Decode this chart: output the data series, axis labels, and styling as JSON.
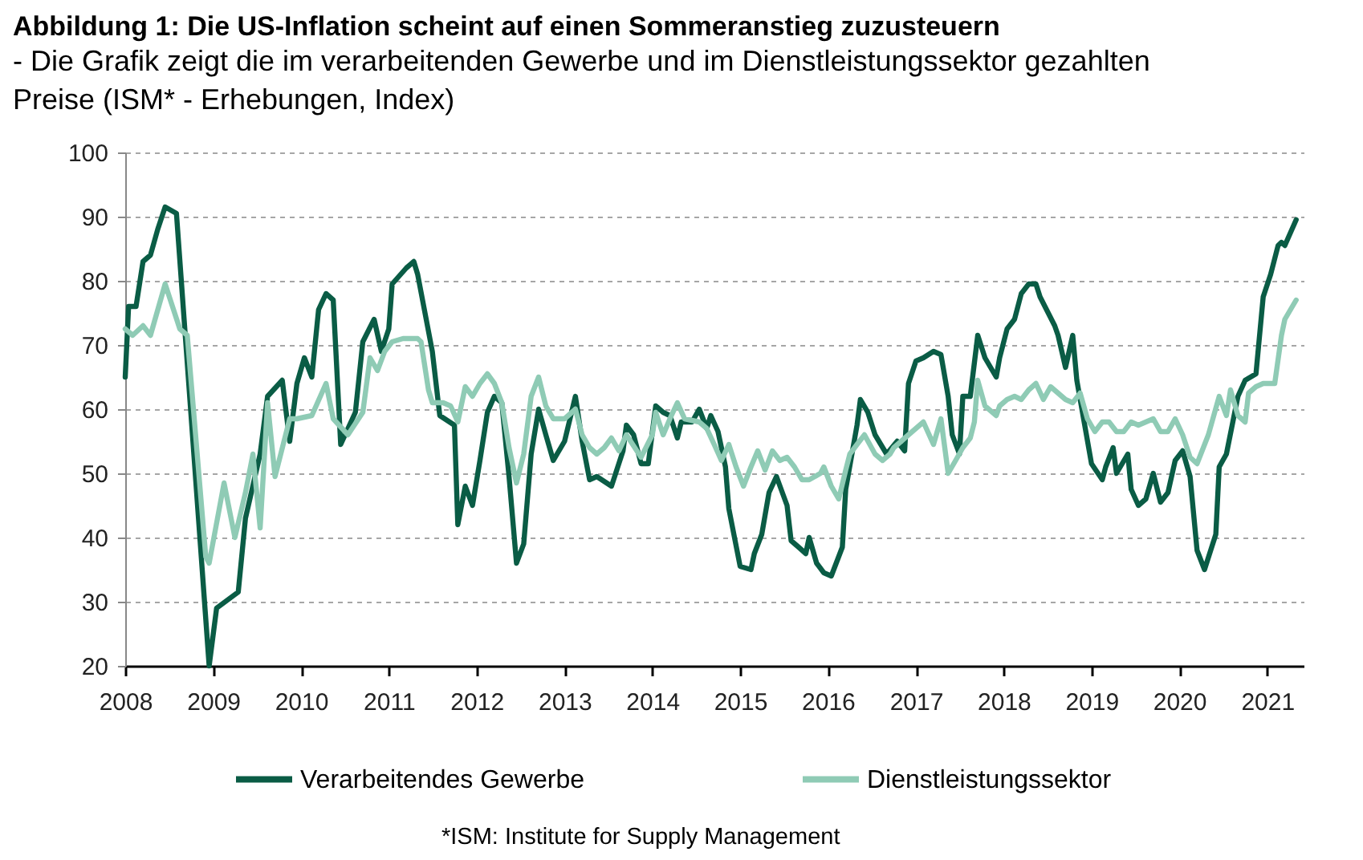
{
  "chart_data": {
    "type": "line",
    "title": "Abbildung 1: Die US-Inflation scheint auf einen Sommeranstieg zuzusteuern",
    "subtitle": "- Die Grafik zeigt die im verarbeitenden Gewerbe und im Dienstleistungssektor gezahlten Preise (ISM* - Erhebungen, Index)",
    "annotations": [
      "*ISM: Institute for Supply Management"
    ],
    "xlim": [
      "2008-01-01",
      "2021-06-01"
    ],
    "xticks": [
      "2008",
      "2009",
      "2010",
      "2011",
      "2012",
      "2013",
      "2014",
      "2015",
      "2016",
      "2017",
      "2018",
      "2019",
      "2020",
      "2021"
    ],
    "ylim": [
      20,
      100
    ],
    "yticks": [
      20,
      30,
      40,
      50,
      60,
      70,
      80,
      90,
      100
    ],
    "grid": "y",
    "legend": "bottom",
    "line_style": "solid",
    "series": [
      {
        "name": "Verarbeitendes Gewerbe",
        "color": "#0a5c45",
        "x": [
          "2008-01-01",
          "2008-01-15",
          "2008-02-15",
          "2008-03-15",
          "2008-04-15",
          "2008-05-15",
          "2008-06-15",
          "2008-08-01",
          "2008-12-15",
          "2009-01-15",
          "2009-04-15",
          "2009-05-15",
          "2009-07-15",
          "2009-08-15",
          "2009-10-15",
          "2009-11-15",
          "2009-12-15",
          "2010-01-15",
          "2010-02-15",
          "2010-03-15",
          "2010-04-15",
          "2010-05-15",
          "2010-06-15",
          "2010-08-15",
          "2010-09-15",
          "2010-11-01",
          "2010-12-01",
          "2011-01-01",
          "2011-01-15",
          "2011-03-15",
          "2011-04-15",
          "2011-05-01",
          "2011-07-01",
          "2011-08-01",
          "2011-10-01",
          "2011-10-15",
          "2011-11-15",
          "2011-12-15",
          "2012-01-15",
          "2012-02-15",
          "2012-03-15",
          "2012-04-15",
          "2012-05-15",
          "2012-06-15",
          "2012-07-15",
          "2012-08-15",
          "2012-09-15",
          "2012-10-15",
          "2012-11-15",
          "2013-01-01",
          "2013-02-15",
          "2013-03-15",
          "2013-04-15",
          "2013-05-15",
          "2013-07-15",
          "2013-09-01",
          "2013-09-15",
          "2013-10-15",
          "2013-11-15",
          "2013-12-15",
          "2014-01-15",
          "2014-02-15",
          "2014-03-15",
          "2014-04-15",
          "2014-05-01",
          "2014-06-15",
          "2014-07-15",
          "2014-08-15",
          "2014-09-01",
          "2014-10-01",
          "2014-11-01",
          "2014-11-15",
          "2015-01-01",
          "2015-02-15",
          "2015-03-01",
          "2015-04-01",
          "2015-05-01",
          "2015-06-01",
          "2015-07-15",
          "2015-08-01",
          "2015-09-01",
          "2015-10-01",
          "2015-10-15",
          "2015-11-15",
          "2015-12-15",
          "2016-01-15",
          "2016-03-01",
          "2016-03-15",
          "2016-05-01",
          "2016-05-15",
          "2016-06-15",
          "2016-07-15",
          "2016-09-01",
          "2016-10-15",
          "2016-11-15",
          "2016-12-01",
          "2017-01-01",
          "2017-02-01",
          "2017-03-15",
          "2017-04-15",
          "2017-05-15",
          "2017-06-01",
          "2017-07-01",
          "2017-07-15",
          "2017-08-15",
          "2017-09-15",
          "2017-10-15",
          "2017-12-01",
          "2017-12-15",
          "2018-01-15",
          "2018-02-15",
          "2018-03-15",
          "2018-04-15",
          "2018-05-15",
          "2018-06-01",
          "2018-08-01",
          "2018-08-15",
          "2018-09-15",
          "2018-10-15",
          "2018-11-01",
          "2019-01-01",
          "2019-02-15",
          "2019-03-01",
          "2019-04-01",
          "2019-04-15",
          "2019-06-01",
          "2019-06-15",
          "2019-07-15",
          "2019-08-15",
          "2019-09-15",
          "2019-10-15",
          "2019-11-15",
          "2019-12-15",
          "2020-01-15",
          "2020-02-15",
          "2020-03-15",
          "2020-04-15",
          "2020-06-01",
          "2020-06-15",
          "2020-07-15",
          "2020-09-01",
          "2020-10-01",
          "2020-11-15",
          "2020-12-15",
          "2021-01-15",
          "2021-02-15",
          "2021-03-01",
          "2021-03-15",
          "2021-05-01"
        ],
        "values": [
          65,
          76,
          76,
          83,
          84,
          88,
          91.5,
          90.5,
          20,
          29,
          31.5,
          43,
          53,
          62,
          64.5,
          55,
          64,
          68,
          65,
          75.5,
          78,
          77,
          54.5,
          59.5,
          70.5,
          74,
          69,
          72.5,
          79.5,
          82,
          83,
          81,
          69,
          59,
          57.5,
          42,
          48,
          45,
          52,
          59.5,
          62,
          61,
          49.5,
          36,
          39,
          53,
          60,
          56,
          52,
          55,
          62,
          55,
          49,
          49.5,
          48,
          53.5,
          57.5,
          56,
          51.5,
          51.5,
          60.5,
          59.5,
          59,
          55.5,
          58,
          58,
          60,
          57,
          59,
          56.5,
          51,
          44.5,
          35.5,
          35,
          37.5,
          40.5,
          47,
          49.5,
          45,
          39.5,
          38.5,
          37.5,
          40,
          36,
          34.5,
          34,
          38.5,
          47.5,
          57.5,
          61.5,
          59.5,
          56,
          53,
          55,
          53.5,
          64,
          67.5,
          68,
          69,
          68.5,
          62,
          56,
          53,
          62,
          62,
          71.5,
          68,
          65,
          68,
          72.5,
          74,
          78,
          79.5,
          79.5,
          77.5,
          73,
          71.5,
          66.5,
          71.5,
          64.5,
          51.5,
          49,
          51,
          54,
          50,
          53,
          47.5,
          45,
          46,
          50,
          45.5,
          47,
          52,
          53.5,
          49.5,
          38,
          35,
          40.5,
          51,
          53,
          62,
          64.5,
          65.5,
          77.5,
          81,
          85.5,
          86,
          85.5,
          89.5
        ]
      },
      {
        "name": "Dienstleistungssektor",
        "color": "#8fcbb5",
        "x": [
          "2008-01-01",
          "2008-02-01",
          "2008-03-15",
          "2008-04-15",
          "2008-06-15",
          "2008-08-15",
          "2008-09-15",
          "2008-12-01",
          "2008-12-15",
          "2009-02-15",
          "2009-04-01",
          "2009-05-15",
          "2009-06-15",
          "2009-07-15",
          "2009-08-15",
          "2009-09-15",
          "2009-11-15",
          "2009-12-15",
          "2010-02-15",
          "2010-04-15",
          "2010-05-15",
          "2010-07-15",
          "2010-09-15",
          "2010-10-15",
          "2010-11-15",
          "2010-12-15",
          "2011-01-15",
          "2011-03-01",
          "2011-05-01",
          "2011-05-15",
          "2011-06-15",
          "2011-07-01",
          "2011-08-15",
          "2011-09-15",
          "2011-10-15",
          "2011-11-15",
          "2011-12-15",
          "2012-01-15",
          "2012-02-15",
          "2012-03-15",
          "2012-04-15",
          "2012-05-15",
          "2012-06-15",
          "2012-07-15",
          "2012-08-15",
          "2012-09-15",
          "2012-10-15",
          "2012-11-15",
          "2013-01-01",
          "2013-02-15",
          "2013-03-15",
          "2013-04-15",
          "2013-05-15",
          "2013-06-15",
          "2013-07-15",
          "2013-08-15",
          "2013-09-15",
          "2013-11-15",
          "2014-01-01",
          "2014-01-15",
          "2014-02-15",
          "2014-03-15",
          "2014-04-15",
          "2014-05-15",
          "2014-07-15",
          "2014-08-15",
          "2014-09-15",
          "2014-10-15",
          "2014-11-15",
          "2014-12-15",
          "2015-01-15",
          "2015-02-15",
          "2015-03-15",
          "2015-04-15",
          "2015-05-15",
          "2015-06-15",
          "2015-07-15",
          "2015-08-15",
          "2015-09-15",
          "2015-10-15",
          "2015-12-01",
          "2015-12-15",
          "2016-01-15",
          "2016-02-15",
          "2016-03-15",
          "2016-04-01",
          "2016-05-01",
          "2016-06-01",
          "2016-07-15",
          "2016-08-15",
          "2016-09-15",
          "2016-10-01",
          "2016-11-01",
          "2016-12-01",
          "2017-01-01",
          "2017-02-01",
          "2017-03-15",
          "2017-04-15",
          "2017-05-15",
          "2017-06-15",
          "2017-07-15",
          "2017-08-15",
          "2017-09-01",
          "2017-09-15",
          "2017-10-15",
          "2017-12-01",
          "2017-12-15",
          "2018-01-15",
          "2018-02-15",
          "2018-03-15",
          "2018-04-15",
          "2018-05-15",
          "2018-06-15",
          "2018-07-15",
          "2018-08-15",
          "2018-09-15",
          "2018-10-15",
          "2018-11-15",
          "2018-12-15",
          "2019-01-15",
          "2019-02-15",
          "2019-03-15",
          "2019-04-15",
          "2019-05-15",
          "2019-06-15",
          "2019-07-15",
          "2019-08-15",
          "2019-09-15",
          "2019-10-15",
          "2019-11-15",
          "2019-12-15",
          "2020-01-15",
          "2020-02-15",
          "2020-03-15",
          "2020-05-01",
          "2020-06-15",
          "2020-07-15",
          "2020-08-01",
          "2020-09-01",
          "2020-10-01",
          "2020-10-15",
          "2020-11-15",
          "2020-12-15",
          "2021-02-01",
          "2021-03-01",
          "2021-03-15",
          "2021-05-01"
        ],
        "values": [
          72.5,
          71.5,
          73,
          71.5,
          79.5,
          72.5,
          71.5,
          37,
          36,
          48.5,
          40,
          47,
          53,
          41.5,
          61,
          49.5,
          58.5,
          58.5,
          59,
          64,
          58.5,
          56,
          59.5,
          68,
          66,
          69,
          70.5,
          71,
          71,
          70.5,
          63,
          61,
          61,
          60.5,
          58,
          63.5,
          62,
          64,
          65.5,
          64,
          61,
          54,
          48.5,
          53,
          62,
          65,
          60.5,
          58.5,
          58.5,
          60,
          56,
          54,
          53,
          54,
          55.5,
          53.5,
          56,
          52.5,
          56,
          59.5,
          56,
          58.5,
          61,
          58.5,
          58,
          57,
          54.5,
          52,
          54.5,
          51,
          48,
          51,
          53.5,
          50.5,
          53.5,
          52,
          52.5,
          51,
          49,
          49,
          50,
          51,
          48,
          46,
          50.5,
          53,
          54.5,
          56,
          53,
          52,
          53,
          54,
          55,
          56,
          57,
          58,
          54.5,
          58.5,
          50,
          52,
          54,
          55.5,
          58,
          64.5,
          60.5,
          59,
          60.5,
          61.5,
          62,
          61.5,
          63,
          64,
          61.5,
          63.5,
          62.5,
          61.5,
          61,
          62.5,
          58.5,
          56.5,
          58,
          58,
          56.5,
          56.5,
          58,
          57.5,
          58,
          58.5,
          56.5,
          56.5,
          58.5,
          56,
          52.5,
          51.5,
          56,
          62,
          59,
          63,
          59,
          58,
          62.5,
          63.5,
          64,
          64,
          71.5,
          74,
          77
        ]
      }
    ]
  }
}
